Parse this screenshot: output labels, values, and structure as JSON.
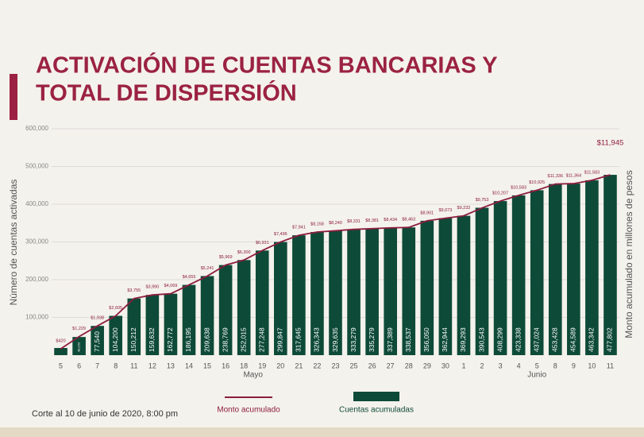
{
  "chart_data": {
    "type": "bar",
    "title_lines": [
      "ACTIVACIÓN DE CUENTAS BANCARIAS Y",
      "TOTAL DE DISPERSIÓN"
    ],
    "y_label": "Número de cuentas activadas",
    "y2_label": "Monto acumulado en millones de pesos",
    "categories": [
      "5",
      "6",
      "7",
      "8",
      "11",
      "12",
      "13",
      "14",
      "15",
      "16",
      "18",
      "19",
      "20",
      "21",
      "22",
      "23",
      "25",
      "26",
      "27",
      "28",
      "29",
      "30",
      "1",
      "2",
      "3",
      "4",
      "5",
      "8",
      "9",
      "10",
      "11"
    ],
    "months": [
      "Mayo",
      "Junio"
    ],
    "ylim": [
      0,
      600000
    ],
    "yticks": [
      {
        "value": 100000,
        "label": "100,000"
      },
      {
        "value": 200000,
        "label": "200,000"
      },
      {
        "value": 300000,
        "label": "300,000"
      },
      {
        "value": 400000,
        "label": "400,000"
      },
      {
        "value": 500000,
        "label": "500,000"
      },
      {
        "value": 600000,
        "label": "600,000"
      }
    ],
    "y2lim": [
      0,
      15000
    ],
    "grid": true,
    "series": [
      {
        "name": "Cuentas acumuladas",
        "type": "bar",
        "color": "#0e4a38",
        "values": [
          19000,
          48153,
          77540,
          104200,
          150212,
          159632,
          162772,
          186195,
          209638,
          238769,
          252015,
          277248,
          299847,
          317645,
          326343,
          329635,
          333279,
          335279,
          337389,
          338537,
          356050,
          362944,
          369293,
          390543,
          408299,
          423338,
          437024,
          453428,
          454589,
          463342,
          477802
        ],
        "value_labels": [
          null,
          "48,153",
          "77,540",
          "104,200",
          "150,212",
          "159,632",
          "162,772",
          "186,195",
          "209,638",
          "238,769",
          "252,015",
          "277,248",
          "299,847",
          "317,645",
          "326,343",
          "329,635",
          "333,279",
          "335,279",
          "337,389",
          "338,537",
          "356,050",
          "362,944",
          "369,293",
          "390,543",
          "408,299",
          "423,338",
          "437,024",
          "453,428",
          "454,589",
          "463,342",
          "477,802"
        ]
      },
      {
        "name": "Monto acumulado",
        "type": "line",
        "axis": "y2",
        "color": "#8c1d3e",
        "values": [
          420,
          1229,
          1938,
          2605,
          3755,
          3990,
          4069,
          4655,
          5241,
          5969,
          6300,
          6931,
          7496,
          7941,
          8158,
          8240,
          8331,
          8381,
          8434,
          8463,
          8901,
          9073,
          9232,
          9753,
          10207,
          10583,
          10925,
          11336,
          11364,
          11583,
          11945
        ],
        "value_labels": [
          "$420",
          "$1,229",
          "$1,938",
          "$2,605",
          "$3,755",
          "$3,990",
          "$4,069",
          "$4,655",
          "$5,241",
          "$5,969",
          "$6,300",
          "$6,931",
          "$7,496",
          "$7,941",
          "$8,158",
          "$8,240",
          "$8,331",
          "$8,381",
          "$8,434",
          "$8,463",
          "$8,901",
          "$9,073",
          "$9,232",
          "$9,753",
          "$10,207",
          "$10,583",
          "$10,925",
          "$11,336",
          "$11,364",
          "$11,583",
          "$11,945"
        ]
      }
    ],
    "footnote": "Corte al 10 de junio de 2020, 8:00 pm"
  }
}
